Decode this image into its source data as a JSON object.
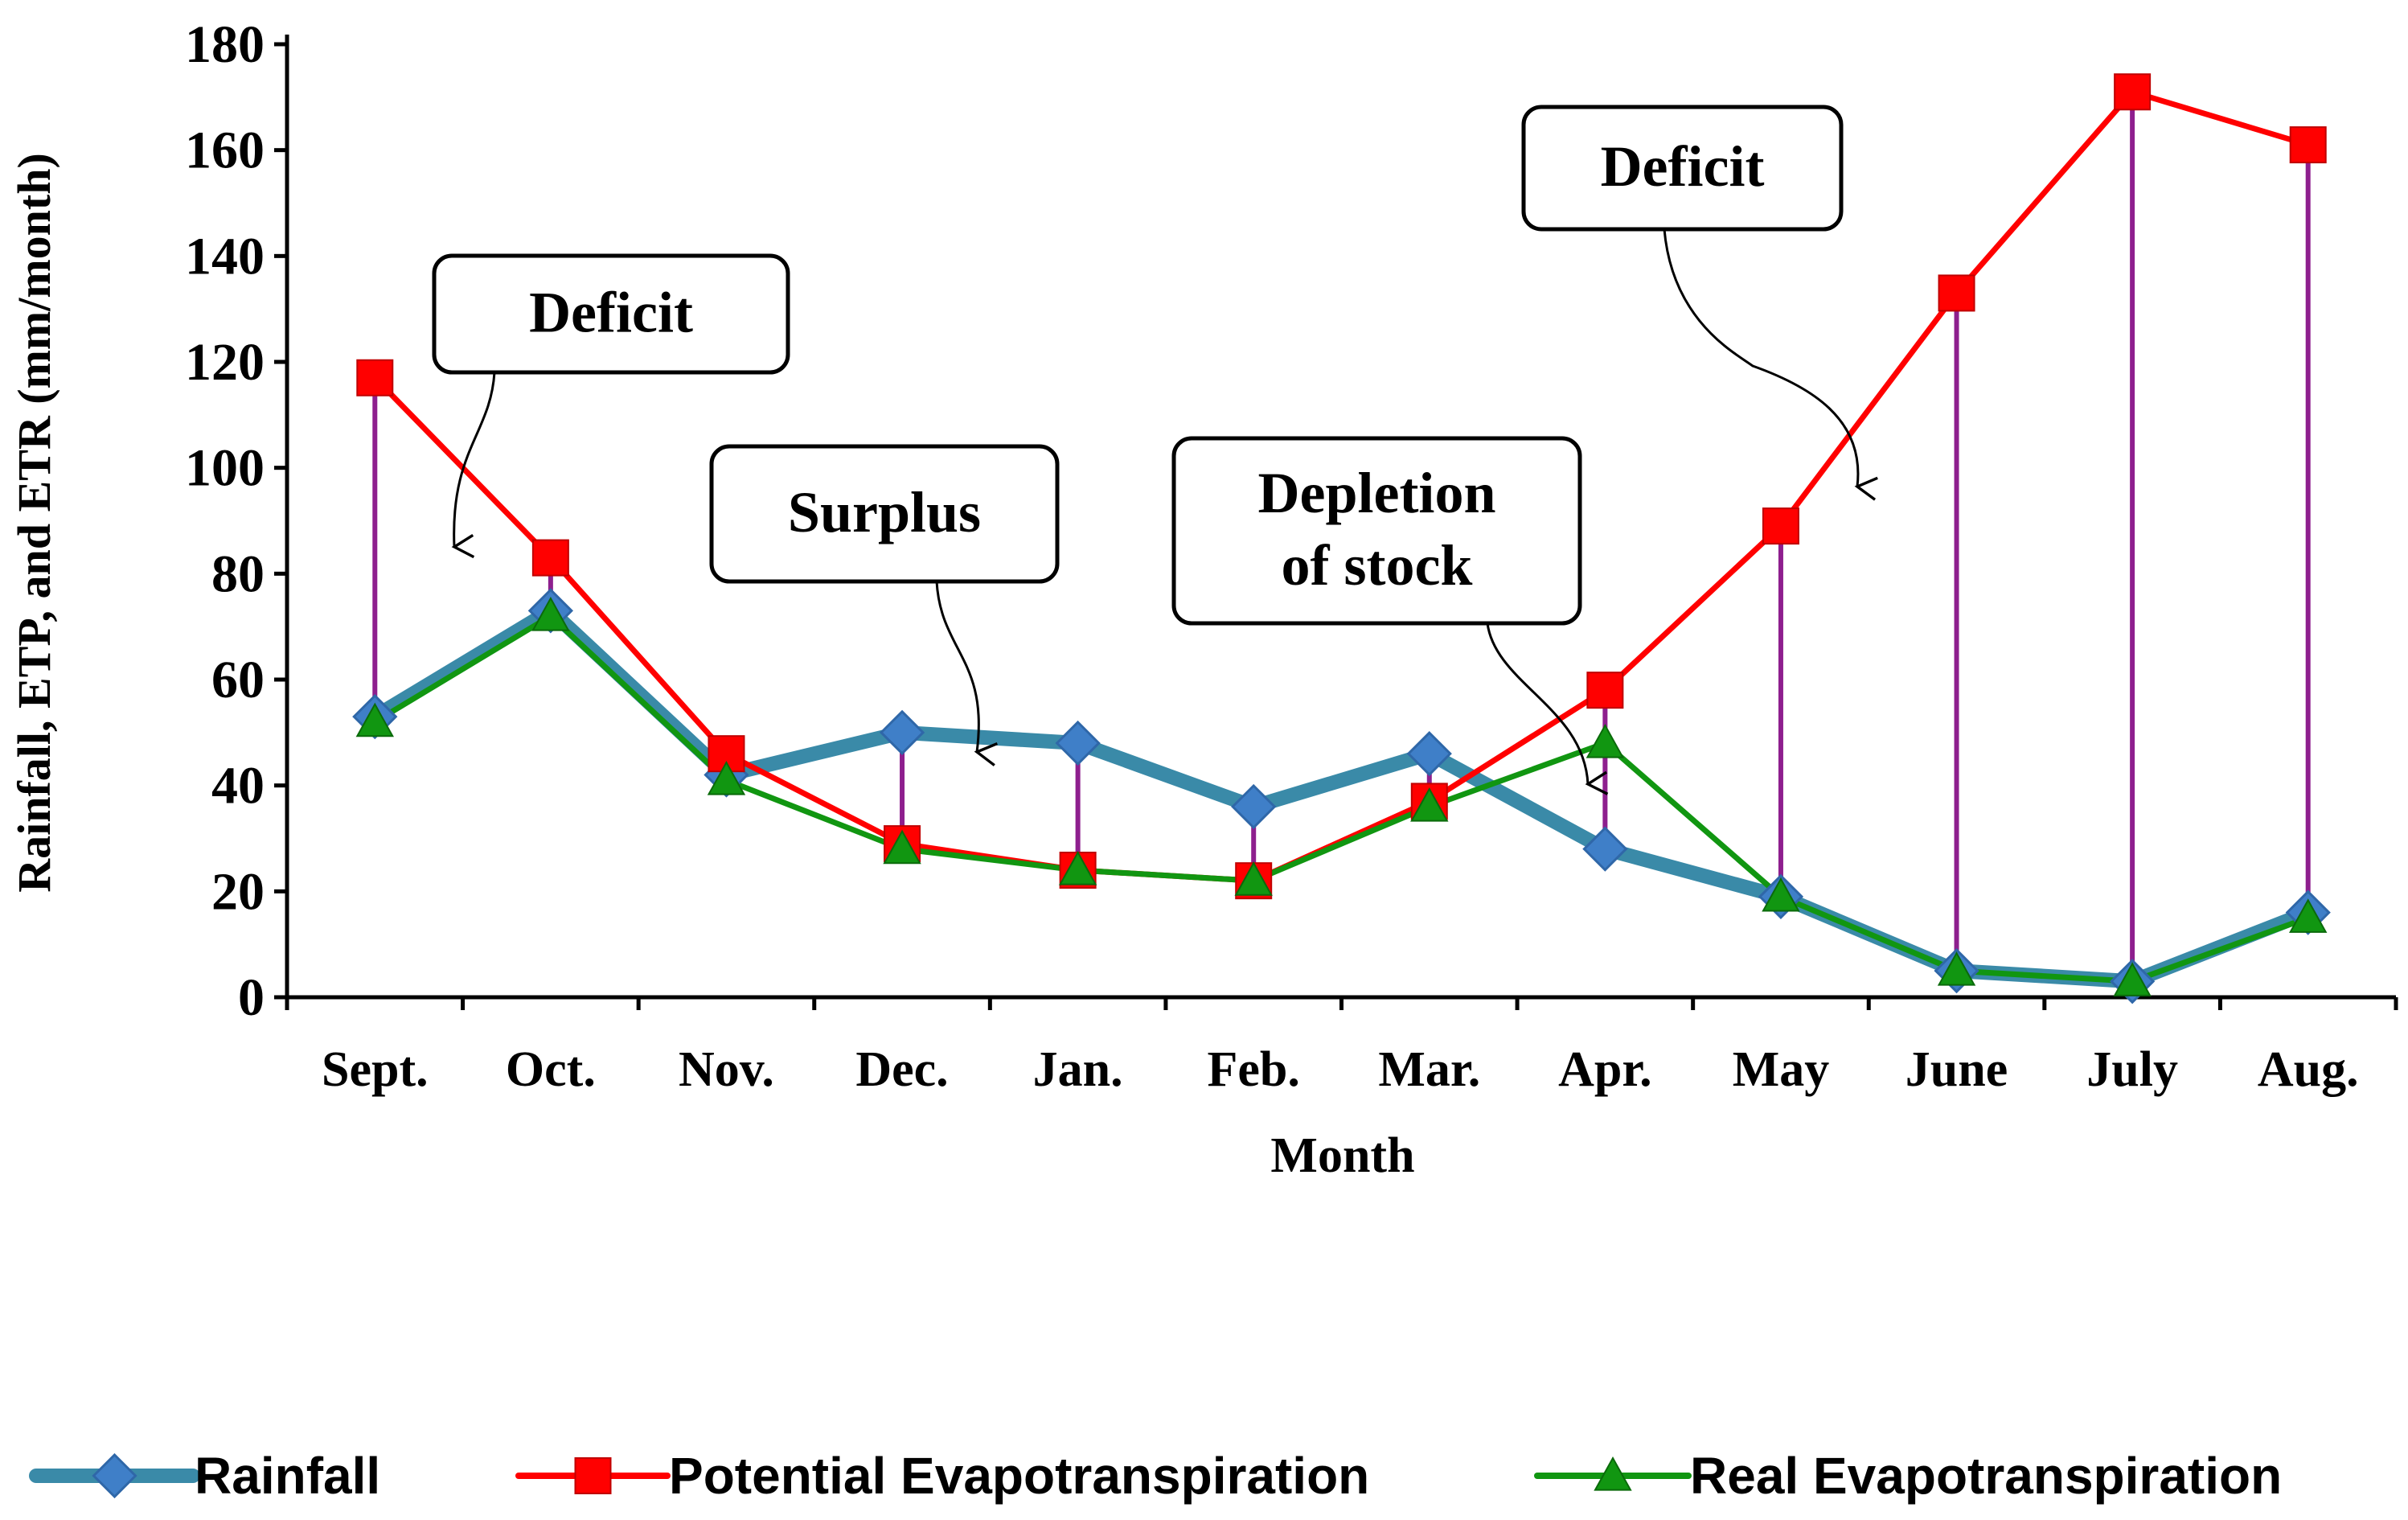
{
  "chart_data": {
    "type": "line",
    "title": "",
    "xlabel": "Month",
    "ylabel": "Rainfall, ETP, and ETR (mm/month)",
    "ylim": [
      0,
      180
    ],
    "yticks": [
      0,
      20,
      40,
      60,
      80,
      100,
      120,
      140,
      160,
      180
    ],
    "categories": [
      "Sept.",
      "Oct.",
      "Nov.",
      "Dec.",
      "Jan.",
      "Feb.",
      "Mar.",
      "Apr.",
      "May",
      "June",
      "July",
      "Aug."
    ],
    "series": [
      {
        "name": "Rainfall",
        "color": "#3a8aa8",
        "marker": "diamond",
        "values": [
          53,
          73,
          42,
          50,
          48,
          36,
          46,
          28,
          19,
          5,
          3,
          16
        ]
      },
      {
        "name": "Potential Evapotranspiration",
        "color": "#ff0000",
        "marker": "square",
        "values": [
          117,
          83,
          46,
          29,
          24,
          22,
          37,
          58,
          89,
          133,
          171,
          161
        ]
      },
      {
        "name": "Real Evapotranspiration",
        "color": "#119611",
        "marker": "triangle",
        "values": [
          52,
          72,
          41,
          28,
          24,
          22,
          36,
          48,
          19,
          5,
          3,
          15
        ]
      }
    ],
    "legend_position": "bottom",
    "annotations": [
      {
        "id": "deficit-1",
        "lines": [
          "Deficit"
        ]
      },
      {
        "id": "surplus",
        "lines": [
          "Surplus"
        ]
      },
      {
        "id": "depletion",
        "lines": [
          "Depletion",
          "of stock"
        ]
      },
      {
        "id": "deficit-2",
        "lines": [
          "Deficit"
        ]
      }
    ]
  }
}
